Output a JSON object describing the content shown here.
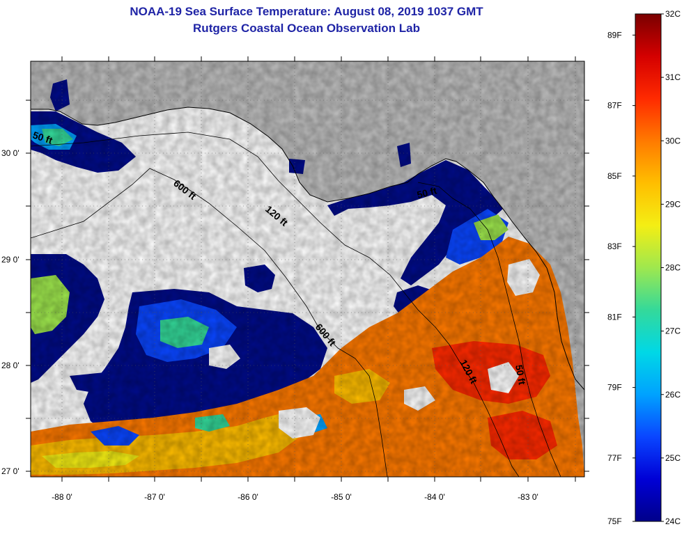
{
  "header": {
    "title": "NOAA-19 Sea Surface Temperature:  August 08, 2019 1037 GMT",
    "subtitle": "Rutgers Coastal Ocean Observation Lab"
  },
  "map": {
    "lon_ticks": [
      {
        "value": -88,
        "label": "-88 0'"
      },
      {
        "value": -87,
        "label": "-87 0'"
      },
      {
        "value": -86,
        "label": "-86 0'"
      },
      {
        "value": -85,
        "label": "-85 0'"
      },
      {
        "value": -84,
        "label": "-84 0'"
      },
      {
        "value": -83,
        "label": "-83 0'"
      }
    ],
    "lat_ticks": [
      {
        "value": 30,
        "label": "30 0'"
      },
      {
        "value": 29,
        "label": "29 0'"
      },
      {
        "value": 28,
        "label": "28 0'"
      },
      {
        "value": 27,
        "label": "27 0'"
      }
    ],
    "contour_labels": [
      {
        "text": "50 ft"
      },
      {
        "text": "600 ft"
      },
      {
        "text": "120 ft"
      },
      {
        "text": "50 ft"
      },
      {
        "text": "600 ft"
      },
      {
        "text": "120 ft"
      },
      {
        "text": "50 ft"
      }
    ]
  },
  "colorbar": {
    "celsius": [
      "32C",
      "31C",
      "30C",
      "29C",
      "28C",
      "27C",
      "26C",
      "25C",
      "24C"
    ],
    "fahrenheit": [
      "89F",
      "87F",
      "85F",
      "83F",
      "81F",
      "79F",
      "77F",
      "75F"
    ],
    "colors": [
      "#7a0000",
      "#d40000",
      "#ff2a00",
      "#ff7a00",
      "#ffbe00",
      "#f4ee14",
      "#9fe84e",
      "#34d99a",
      "#00d8e6",
      "#00a2ff",
      "#0a46ff",
      "#0000d6",
      "#00008a"
    ]
  },
  "colors": {
    "title": "#1f24a6",
    "land": "#bebebe",
    "ocean_nodata": "#ffffff",
    "cold_water": "#000c8a"
  }
}
